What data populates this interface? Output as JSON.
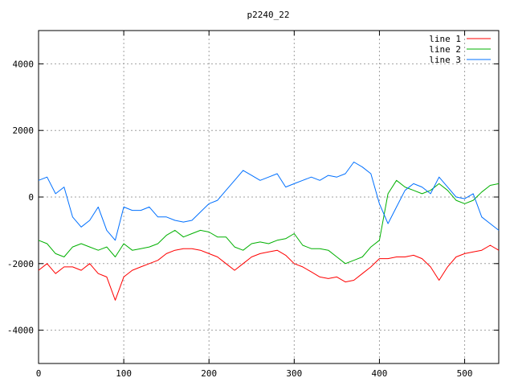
{
  "chart_data": {
    "type": "line",
    "title": "p2240_22",
    "xlabel": "",
    "ylabel": "",
    "xlim": [
      0,
      540
    ],
    "ylim": [
      -5000,
      5000
    ],
    "x_ticks": [
      "0",
      "100",
      "200",
      "300",
      "400",
      "500"
    ],
    "y_ticks": [
      "-4000",
      "-2000",
      "0",
      "2000",
      "4000"
    ],
    "x_tick_values": [
      0,
      100,
      200,
      300,
      400,
      500
    ],
    "y_tick_values": [
      -4000,
      -2000,
      0,
      2000,
      4000
    ],
    "grid": true,
    "legend_position": "top-right",
    "x": [
      0,
      10,
      20,
      30,
      40,
      50,
      60,
      70,
      80,
      90,
      100,
      110,
      120,
      130,
      140,
      150,
      160,
      170,
      180,
      190,
      200,
      210,
      220,
      230,
      240,
      250,
      260,
      270,
      280,
      290,
      300,
      310,
      320,
      330,
      340,
      350,
      360,
      370,
      380,
      390,
      400,
      410,
      420,
      430,
      440,
      450,
      460,
      470,
      480,
      490,
      500,
      510,
      520,
      530,
      540
    ],
    "series": [
      {
        "name": "line 1",
        "color": "#ff0000",
        "values": [
          -2200,
          -2000,
          -2300,
          -2100,
          -2100,
          -2200,
          -2000,
          -2300,
          -2400,
          -3100,
          -2400,
          -2200,
          -2100,
          -2000,
          -1900,
          -1700,
          -1600,
          -1550,
          -1550,
          -1600,
          -1700,
          -1800,
          -2000,
          -2200,
          -2000,
          -1800,
          -1700,
          -1650,
          -1600,
          -1750,
          -2000,
          -2100,
          -2250,
          -2400,
          -2450,
          -2400,
          -2550,
          -2500,
          -2300,
          -2100,
          -1850,
          -1850,
          -1800,
          -1800,
          -1750,
          -1850,
          -2100,
          -2500,
          -2100,
          -1800,
          -1700,
          -1650,
          -1600,
          -1450,
          -1600
        ]
      },
      {
        "name": "line 2",
        "color": "#00b000",
        "values": [
          -1300,
          -1400,
          -1700,
          -1800,
          -1500,
          -1400,
          -1500,
          -1600,
          -1500,
          -1800,
          -1400,
          -1600,
          -1550,
          -1500,
          -1400,
          -1150,
          -1000,
          -1200,
          -1100,
          -1000,
          -1050,
          -1200,
          -1200,
          -1500,
          -1600,
          -1400,
          -1350,
          -1400,
          -1300,
          -1250,
          -1100,
          -1450,
          -1550,
          -1550,
          -1600,
          -1800,
          -2000,
          -1900,
          -1800,
          -1500,
          -1300,
          100,
          500,
          300,
          200,
          100,
          200,
          400,
          200,
          -100,
          -200,
          -100,
          150,
          350,
          400
        ]
      },
      {
        "name": "line 3",
        "color": "#0070ff",
        "values": [
          500,
          600,
          100,
          300,
          -600,
          -900,
          -700,
          -300,
          -1000,
          -1300,
          -300,
          -400,
          -400,
          -300,
          -600,
          -600,
          -700,
          -750,
          -700,
          -450,
          -200,
          -100,
          200,
          500,
          800,
          650,
          500,
          600,
          700,
          300,
          400,
          500,
          600,
          500,
          650,
          600,
          700,
          1050,
          900,
          700,
          -200,
          -800,
          -300,
          200,
          400,
          300,
          100,
          600,
          300,
          0,
          -50,
          100,
          -600,
          -800,
          -1000
        ]
      }
    ]
  }
}
